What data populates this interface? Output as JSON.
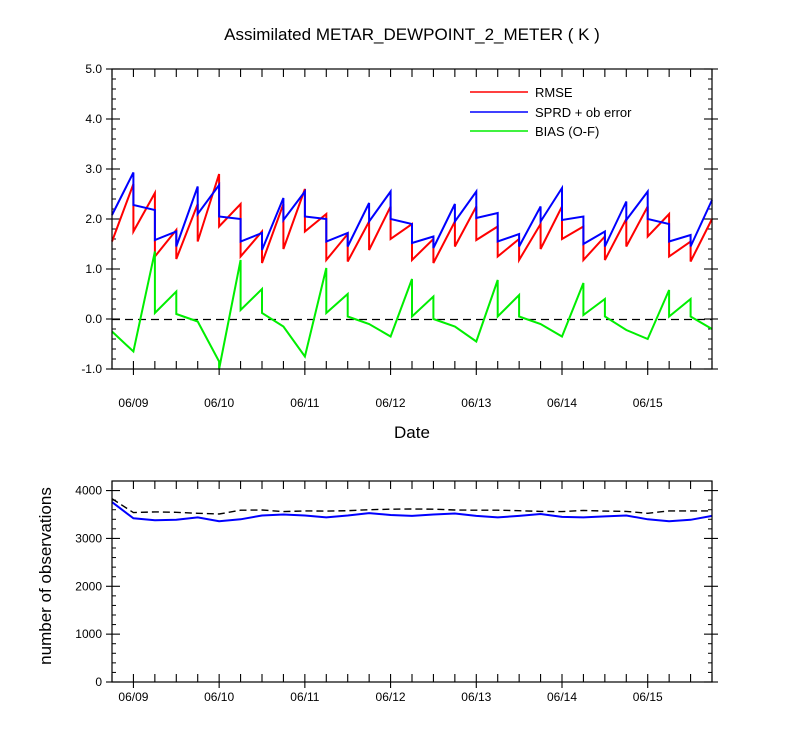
{
  "title": "Assimilated METAR_DEWPOINT_2_METER ( K )",
  "chart_data": [
    {
      "type": "line",
      "title": "Assimilated METAR_DEWPOINT_2_METER ( K )",
      "xlabel": "Date",
      "ylabel": "",
      "xlim": [
        0,
        28
      ],
      "ylim": [
        -1.0,
        5.0
      ],
      "yticks": [
        "5.0",
        "4.0",
        "3.0",
        "2.0",
        "1.0",
        "0.0",
        "-1.0"
      ],
      "ytick_values": [
        5.0,
        4.0,
        3.0,
        2.0,
        1.0,
        0.0,
        -1.0
      ],
      "date_labels": [
        "06/09",
        "06/10",
        "06/11",
        "06/12",
        "06/13",
        "06/14",
        "06/15"
      ],
      "date_positions": [
        1,
        5,
        9,
        13,
        17,
        21,
        25
      ],
      "zero_line": "dashed",
      "legend_position": "top-right",
      "series": [
        {
          "name": "RMSE",
          "color": "#ff0000",
          "points": [
            [
              0,
              1.55
            ],
            [
              1,
              2.7
            ],
            [
              1,
              1.75
            ],
            [
              2,
              2.52
            ],
            [
              2,
              1.25
            ],
            [
              3,
              1.78
            ],
            [
              3,
              1.2
            ],
            [
              4,
              2.3
            ],
            [
              4,
              1.55
            ],
            [
              5,
              2.9
            ],
            [
              5,
              1.85
            ],
            [
              6,
              2.3
            ],
            [
              6,
              1.25
            ],
            [
              7,
              1.75
            ],
            [
              7,
              1.12
            ],
            [
              8,
              2.3
            ],
            [
              8,
              1.4
            ],
            [
              9,
              2.6
            ],
            [
              9,
              1.75
            ],
            [
              10,
              2.1
            ],
            [
              10,
              1.18
            ],
            [
              11,
              1.7
            ],
            [
              11,
              1.15
            ],
            [
              12,
              1.95
            ],
            [
              12,
              1.38
            ],
            [
              13,
              2.25
            ],
            [
              13,
              1.6
            ],
            [
              14,
              1.9
            ],
            [
              14,
              1.18
            ],
            [
              15,
              1.6
            ],
            [
              15,
              1.12
            ],
            [
              16,
              1.95
            ],
            [
              16,
              1.45
            ],
            [
              17,
              2.25
            ],
            [
              17,
              1.58
            ],
            [
              18,
              1.85
            ],
            [
              18,
              1.25
            ],
            [
              19,
              1.6
            ],
            [
              19,
              1.18
            ],
            [
              20,
              1.9
            ],
            [
              20,
              1.4
            ],
            [
              21,
              2.25
            ],
            [
              21,
              1.6
            ],
            [
              22,
              1.85
            ],
            [
              22,
              1.18
            ],
            [
              23,
              1.65
            ],
            [
              23,
              1.18
            ],
            [
              24,
              2.0
            ],
            [
              24,
              1.45
            ],
            [
              25,
              2.25
            ],
            [
              25,
              1.65
            ],
            [
              26,
              2.1
            ],
            [
              26,
              1.25
            ],
            [
              27,
              1.55
            ],
            [
              27,
              1.15
            ],
            [
              28,
              2.0
            ]
          ]
        },
        {
          "name": "SPRD + ob error",
          "color": "#0000ff",
          "points": [
            [
              0,
              2.08
            ],
            [
              1,
              2.93
            ],
            [
              1,
              2.28
            ],
            [
              2,
              2.18
            ],
            [
              2,
              1.58
            ],
            [
              3,
              1.75
            ],
            [
              3,
              1.45
            ],
            [
              4,
              2.65
            ],
            [
              4,
              2.1
            ],
            [
              5,
              2.68
            ],
            [
              5,
              2.05
            ],
            [
              6,
              2.0
            ],
            [
              6,
              1.55
            ],
            [
              7,
              1.72
            ],
            [
              7,
              1.38
            ],
            [
              8,
              2.42
            ],
            [
              8,
              1.98
            ],
            [
              9,
              2.55
            ],
            [
              9,
              2.05
            ],
            [
              10,
              2.0
            ],
            [
              10,
              1.55
            ],
            [
              11,
              1.72
            ],
            [
              11,
              1.45
            ],
            [
              12,
              2.32
            ],
            [
              12,
              1.95
            ],
            [
              13,
              2.55
            ],
            [
              13,
              2.0
            ],
            [
              14,
              1.9
            ],
            [
              14,
              1.52
            ],
            [
              15,
              1.65
            ],
            [
              15,
              1.42
            ],
            [
              16,
              2.3
            ],
            [
              16,
              1.95
            ],
            [
              17,
              2.55
            ],
            [
              17,
              2.02
            ],
            [
              18,
              2.12
            ],
            [
              18,
              1.55
            ],
            [
              19,
              1.7
            ],
            [
              19,
              1.45
            ],
            [
              20,
              2.25
            ],
            [
              20,
              1.95
            ],
            [
              21,
              2.62
            ],
            [
              21,
              1.98
            ],
            [
              22,
              2.05
            ],
            [
              22,
              1.5
            ],
            [
              23,
              1.75
            ],
            [
              23,
              1.45
            ],
            [
              24,
              2.35
            ],
            [
              24,
              1.98
            ],
            [
              25,
              2.55
            ],
            [
              25,
              2.0
            ],
            [
              26,
              1.9
            ],
            [
              26,
              1.55
            ],
            [
              27,
              1.68
            ],
            [
              27,
              1.45
            ],
            [
              28,
              2.38
            ]
          ]
        },
        {
          "name": "BIAS (O-F)",
          "color": "#00ee00",
          "points": [
            [
              0,
              -0.25
            ],
            [
              1,
              -0.65
            ],
            [
              2,
              1.35
            ],
            [
              2,
              0.12
            ],
            [
              3,
              0.55
            ],
            [
              3,
              0.1
            ],
            [
              4,
              -0.05
            ],
            [
              5,
              -0.85
            ],
            [
              5,
              -1.0
            ],
            [
              6,
              1.18
            ],
            [
              6,
              0.18
            ],
            [
              7,
              0.6
            ],
            [
              7,
              0.12
            ],
            [
              8,
              -0.15
            ],
            [
              9,
              -0.75
            ],
            [
              10,
              1.02
            ],
            [
              10,
              0.12
            ],
            [
              11,
              0.5
            ],
            [
              11,
              0.05
            ],
            [
              12,
              -0.1
            ],
            [
              13,
              -0.35
            ],
            [
              14,
              0.8
            ],
            [
              14,
              0.05
            ],
            [
              15,
              0.45
            ],
            [
              15,
              0.0
            ],
            [
              16,
              -0.15
            ],
            [
              17,
              -0.45
            ],
            [
              18,
              0.78
            ],
            [
              18,
              0.05
            ],
            [
              19,
              0.48
            ],
            [
              19,
              0.05
            ],
            [
              20,
              -0.1
            ],
            [
              21,
              -0.35
            ],
            [
              22,
              0.72
            ],
            [
              22,
              0.08
            ],
            [
              23,
              0.4
            ],
            [
              23,
              0.05
            ],
            [
              24,
              -0.22
            ],
            [
              25,
              -0.4
            ],
            [
              26,
              0.58
            ],
            [
              26,
              0.05
            ],
            [
              27,
              0.4
            ],
            [
              27,
              0.05
            ],
            [
              28,
              -0.2
            ]
          ]
        }
      ]
    },
    {
      "type": "line",
      "title": "",
      "xlabel": "",
      "ylabel": "number of observations",
      "xlim": [
        0,
        28
      ],
      "ylim": [
        0,
        4200
      ],
      "yticks": [
        "4000",
        "3000",
        "2000",
        "1000",
        "0"
      ],
      "ytick_values": [
        4000,
        3000,
        2000,
        1000,
        0
      ],
      "date_labels": [
        "06/09",
        "06/10",
        "06/11",
        "06/12",
        "06/13",
        "06/14",
        "06/15"
      ],
      "date_positions": [
        1,
        5,
        9,
        13,
        17,
        21,
        25
      ],
      "series": [
        {
          "name": "",
          "color": "#000000",
          "dash": true,
          "points": [
            [
              0,
              3830
            ],
            [
              1,
              3540
            ],
            [
              2,
              3555
            ],
            [
              3,
              3545
            ],
            [
              4,
              3525
            ],
            [
              5,
              3510
            ],
            [
              6,
              3590
            ],
            [
              7,
              3595
            ],
            [
              8,
              3560
            ],
            [
              9,
              3575
            ],
            [
              10,
              3570
            ],
            [
              11,
              3580
            ],
            [
              12,
              3600
            ],
            [
              13,
              3610
            ],
            [
              14,
              3615
            ],
            [
              15,
              3610
            ],
            [
              16,
              3595
            ],
            [
              17,
              3590
            ],
            [
              18,
              3590
            ],
            [
              19,
              3580
            ],
            [
              20,
              3565
            ],
            [
              21,
              3560
            ],
            [
              22,
              3585
            ],
            [
              23,
              3570
            ],
            [
              24,
              3565
            ],
            [
              25,
              3525
            ],
            [
              26,
              3575
            ],
            [
              27,
              3575
            ],
            [
              28,
              3575
            ]
          ]
        },
        {
          "name": "",
          "color": "#0000ff",
          "dash": false,
          "points": [
            [
              0,
              3760
            ],
            [
              1,
              3420
            ],
            [
              2,
              3380
            ],
            [
              3,
              3390
            ],
            [
              4,
              3440
            ],
            [
              5,
              3360
            ],
            [
              6,
              3400
            ],
            [
              7,
              3480
            ],
            [
              8,
              3500
            ],
            [
              9,
              3480
            ],
            [
              10,
              3440
            ],
            [
              11,
              3480
            ],
            [
              12,
              3530
            ],
            [
              13,
              3490
            ],
            [
              14,
              3470
            ],
            [
              15,
              3500
            ],
            [
              16,
              3520
            ],
            [
              17,
              3470
            ],
            [
              18,
              3440
            ],
            [
              19,
              3470
            ],
            [
              20,
              3510
            ],
            [
              21,
              3450
            ],
            [
              22,
              3440
            ],
            [
              23,
              3460
            ],
            [
              24,
              3480
            ],
            [
              25,
              3400
            ],
            [
              26,
              3360
            ],
            [
              27,
              3390
            ],
            [
              28,
              3470
            ]
          ]
        }
      ]
    }
  ]
}
